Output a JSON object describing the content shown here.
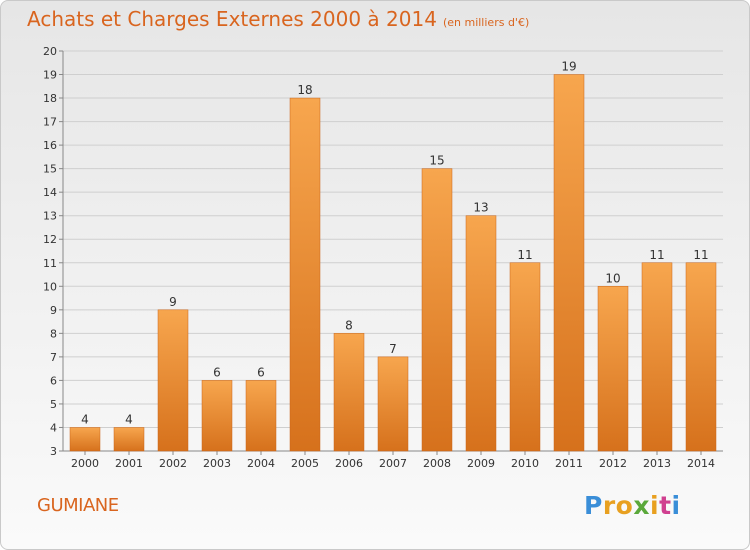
{
  "title": "Achats et Charges Externes 2000 à 2014",
  "subtitle": "(en milliers d'€)",
  "commune": "GUMIANE",
  "logo_text": "Proxiti",
  "colors": {
    "bar_top": "#f7a64e",
    "bar_bottom": "#d6711c",
    "title": "#d9651f",
    "grid": "#cfcfcf"
  },
  "chart_data": {
    "type": "bar",
    "title": "Achats et Charges Externes 2000 à 2014",
    "categories": [
      "2000",
      "2001",
      "2002",
      "2003",
      "2004",
      "2005",
      "2006",
      "2007",
      "2008",
      "2009",
      "2010",
      "2011",
      "2012",
      "2013",
      "2014"
    ],
    "values": [
      4,
      4,
      9,
      6,
      6,
      18,
      8,
      7,
      15,
      13,
      11,
      19,
      10,
      11,
      11
    ],
    "ylim": [
      3,
      20
    ],
    "yticks": [
      3,
      4,
      5,
      6,
      7,
      8,
      9,
      10,
      11,
      12,
      13,
      14,
      15,
      16,
      17,
      18,
      19,
      20
    ],
    "grid": true,
    "legend": "none"
  }
}
